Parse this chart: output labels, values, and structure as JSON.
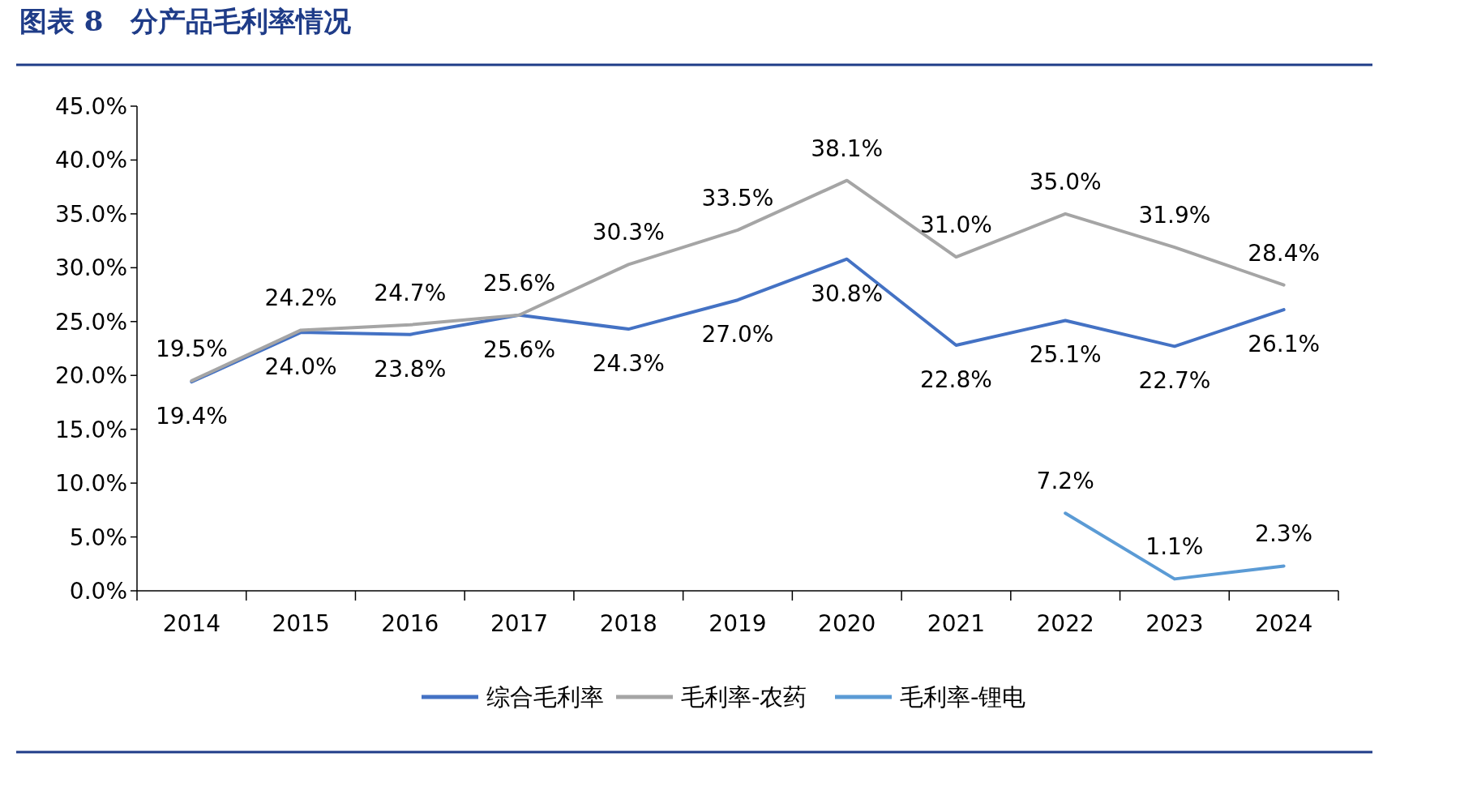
{
  "chart_data": {
    "type": "line",
    "title": "图表 8　分产品毛利率情况",
    "categories": [
      "2014",
      "2015",
      "2016",
      "2017",
      "2018",
      "2019",
      "2020",
      "2021",
      "2022",
      "2023",
      "2024"
    ],
    "series": [
      {
        "name": "综合毛利率",
        "color": "#4472c4",
        "values": [
          19.4,
          24.0,
          23.8,
          25.6,
          24.3,
          27.0,
          30.8,
          22.8,
          25.1,
          22.7,
          26.1
        ],
        "value_labels": [
          "19.4%",
          "24.0%",
          "23.8%",
          "25.6%",
          "24.3%",
          "27.0%",
          "30.8%",
          "22.8%",
          "25.1%",
          "22.7%",
          "26.1%"
        ]
      },
      {
        "name": "毛利率-农药",
        "color": "#a5a5a5",
        "values": [
          19.5,
          24.2,
          24.7,
          25.6,
          30.3,
          33.5,
          38.1,
          31.0,
          35.0,
          31.9,
          28.4
        ],
        "value_labels": [
          "19.5%",
          "24.2%",
          "24.7%",
          "25.6%",
          "30.3%",
          "33.5%",
          "38.1%",
          "31.0%",
          "35.0%",
          "31.9%",
          "28.4%"
        ]
      },
      {
        "name": "毛利率-锂电",
        "color": "#5b9bd5",
        "values": [
          null,
          null,
          null,
          null,
          null,
          null,
          null,
          null,
          7.2,
          1.1,
          2.3
        ],
        "value_labels": [
          null,
          null,
          null,
          null,
          null,
          null,
          null,
          null,
          "7.2%",
          "1.1%",
          "2.3%"
        ]
      }
    ],
    "ylim": [
      0,
      45
    ],
    "yticks": [
      {
        "value": 0,
        "label": "0.0%"
      },
      {
        "value": 5,
        "label": "5.0%"
      },
      {
        "value": 10,
        "label": "10.0%"
      },
      {
        "value": 15,
        "label": "15.0%"
      },
      {
        "value": 20,
        "label": "20.0%"
      },
      {
        "value": 25,
        "label": "25.0%"
      },
      {
        "value": 30,
        "label": "30.0%"
      },
      {
        "value": 35,
        "label": "35.0%"
      },
      {
        "value": 40,
        "label": "40.0%"
      },
      {
        "value": 45,
        "label": "45.0%"
      }
    ],
    "legend": "bottom",
    "grid": false,
    "marker": "none",
    "line_style": "solid"
  }
}
